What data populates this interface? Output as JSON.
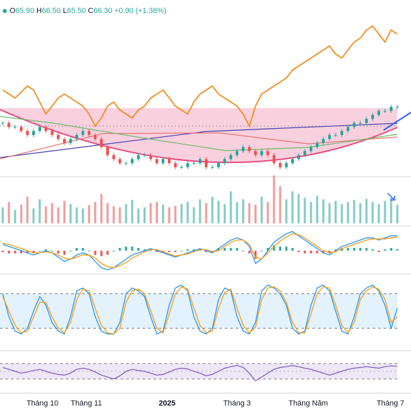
{
  "ohlc": {
    "open_label": "O",
    "open": "65.90",
    "high_label": "H",
    "high": "66.50",
    "low_label": "L",
    "low": "65.50",
    "close_label": "C",
    "close": "66.30",
    "change": "+0.90 (+1.38%)"
  },
  "colors": {
    "up": "#26a69a",
    "down": "#ef5350",
    "orange": "#f08c1e",
    "blue": "#2962ff",
    "navy": "#3f3fb0",
    "pink_fill": "#f8c8d8",
    "stoch_fill": "#e3f2fd",
    "rsi_fill": "#ede7f6",
    "rsi_line": "#7e57c2"
  },
  "x_axis": {
    "labels": [
      {
        "text": "Tháng 10",
        "bold": false
      },
      {
        "text": "Tháng 11",
        "bold": false
      },
      {
        "text": "2025",
        "bold": true
      },
      {
        "text": "Tháng 3",
        "bold": false
      },
      {
        "text": "Tháng Năm",
        "bold": false
      },
      {
        "text": "Tháng 7",
        "bold": false
      }
    ]
  },
  "chart_data": [
    {
      "type": "candlestick",
      "panel": "price",
      "series": [
        {
          "name": "",
          "values": [
            62,
            61,
            61,
            60,
            59,
            60,
            61,
            60,
            59,
            58,
            57,
            58,
            59,
            60,
            59,
            58,
            56,
            54,
            53,
            52,
            52,
            53,
            54,
            54,
            53,
            52,
            53,
            52,
            51,
            51,
            52,
            52,
            53,
            51,
            51,
            52,
            53,
            54,
            55,
            56,
            55,
            54,
            55,
            54,
            52,
            51,
            52,
            53,
            54,
            55,
            56,
            57,
            58,
            59,
            59,
            60,
            61,
            62,
            62,
            63,
            64,
            65,
            65,
            66,
            66
          ]
        }
      ]
    },
    {
      "type": "line",
      "panel": "comparison",
      "series": [
        {
          "name": "",
          "values": [
            88,
            86,
            84,
            87,
            90,
            88,
            82,
            76,
            80,
            84,
            86,
            84,
            82,
            80,
            76,
            70,
            74,
            80,
            82,
            78,
            76,
            74,
            78,
            80,
            84,
            86,
            88,
            84,
            80,
            78,
            76,
            82,
            86,
            88,
            90,
            86,
            84,
            82,
            80,
            76,
            70,
            80,
            86,
            88,
            90,
            92,
            94,
            98,
            100,
            102,
            104,
            106,
            108,
            110,
            106,
            104,
            108,
            112,
            114,
            118,
            120,
            116,
            112,
            118,
            116
          ]
        }
      ]
    },
    {
      "type": "bar",
      "panel": "volume",
      "series": [
        {
          "name": "",
          "values": [
            30,
            40,
            25,
            35,
            50,
            28,
            45,
            32,
            38,
            30,
            42,
            36,
            30,
            28,
            34,
            40,
            55,
            38,
            32,
            30,
            36,
            44,
            28,
            30,
            38,
            40,
            35,
            30,
            33,
            36,
            40,
            30,
            45,
            38,
            50,
            42,
            36,
            60,
            40,
            45,
            38,
            35,
            50,
            40,
            90,
            70,
            45,
            60,
            55,
            48,
            40,
            52,
            45,
            38,
            42,
            36,
            40,
            44,
            38,
            46,
            40,
            36,
            42,
            48,
            35
          ]
        }
      ]
    },
    {
      "type": "line",
      "panel": "macd",
      "series": [
        {
          "name": "",
          "values": [
            0.3,
            0.2,
            0.1,
            0,
            -0.1,
            -0.2,
            -0.1,
            0,
            -0.1,
            -0.3,
            -0.5,
            -0.4,
            -0.2,
            -0.1,
            -0.2,
            -0.5,
            -0.8,
            -0.9,
            -0.8,
            -0.6,
            -0.4,
            -0.2,
            -0.1,
            0,
            0.1,
            0,
            -0.1,
            -0.2,
            -0.3,
            -0.2,
            -0.1,
            0,
            0.1,
            0,
            -0.1,
            0.1,
            0.3,
            0.5,
            0.6,
            0.5,
            0.2,
            -0.6,
            -0.4,
            0,
            0.4,
            0.6,
            0.8,
            0.9,
            0.7,
            0.5,
            0.3,
            0.1,
            -0.1,
            -0.2,
            0,
            0.2,
            0.3,
            0.4,
            0.5,
            0.6,
            0.6,
            0.5,
            0.6,
            0.7,
            0.7
          ]
        },
        {
          "name": "",
          "values": [
            0.35,
            0.3,
            0.2,
            0.1,
            0,
            -0.1,
            -0.1,
            -0.05,
            -0.1,
            -0.2,
            -0.35,
            -0.4,
            -0.3,
            -0.2,
            -0.2,
            -0.35,
            -0.6,
            -0.75,
            -0.8,
            -0.7,
            -0.55,
            -0.35,
            -0.2,
            -0.05,
            0.05,
            0.05,
            -0.05,
            -0.15,
            -0.25,
            -0.2,
            -0.15,
            -0.05,
            0.05,
            0.05,
            -0.05,
            0,
            0.2,
            0.4,
            0.5,
            0.5,
            0.3,
            -0.3,
            -0.4,
            -0.1,
            0.2,
            0.45,
            0.65,
            0.8,
            0.75,
            0.6,
            0.4,
            0.2,
            0,
            -0.1,
            -0.05,
            0.1,
            0.2,
            0.3,
            0.4,
            0.5,
            0.55,
            0.55,
            0.55,
            0.6,
            0.65
          ]
        }
      ]
    },
    {
      "type": "line",
      "panel": "stochastic",
      "series": [
        {
          "name": "",
          "values": [
            80,
            40,
            15,
            10,
            20,
            50,
            75,
            60,
            30,
            15,
            10,
            40,
            85,
            90,
            80,
            40,
            15,
            10,
            10,
            30,
            80,
            90,
            85,
            75,
            40,
            10,
            15,
            60,
            90,
            95,
            85,
            40,
            15,
            10,
            20,
            70,
            90,
            85,
            40,
            15,
            10,
            30,
            85,
            95,
            90,
            80,
            60,
            20,
            10,
            15,
            60,
            90,
            95,
            85,
            50,
            15,
            10,
            40,
            80,
            90,
            95,
            85,
            60,
            20,
            55
          ]
        },
        {
          "name": "",
          "values": [
            75,
            50,
            25,
            12,
            15,
            40,
            65,
            65,
            40,
            20,
            12,
            30,
            70,
            88,
            85,
            55,
            25,
            12,
            10,
            20,
            65,
            85,
            88,
            80,
            50,
            20,
            12,
            45,
            80,
            92,
            88,
            55,
            25,
            12,
            15,
            55,
            82,
            88,
            55,
            25,
            12,
            22,
            70,
            90,
            92,
            85,
            65,
            30,
            12,
            12,
            45,
            80,
            92,
            90,
            60,
            25,
            12,
            30,
            70,
            85,
            92,
            88,
            70,
            30,
            40
          ]
        }
      ]
    },
    {
      "type": "line",
      "panel": "rsi",
      "series": [
        {
          "name": "",
          "values": [
            60,
            55,
            50,
            45,
            48,
            52,
            55,
            50,
            45,
            42,
            40,
            45,
            55,
            58,
            55,
            48,
            40,
            35,
            30,
            38,
            50,
            55,
            52,
            50,
            45,
            40,
            42,
            48,
            55,
            58,
            56,
            50,
            45,
            38,
            42,
            50,
            58,
            62,
            65,
            60,
            45,
            25,
            35,
            45,
            55,
            60,
            62,
            65,
            62,
            58,
            55,
            50,
            45,
            40,
            45,
            50,
            55,
            58,
            60,
            62,
            60,
            58,
            62,
            64,
            63
          ]
        }
      ]
    }
  ]
}
